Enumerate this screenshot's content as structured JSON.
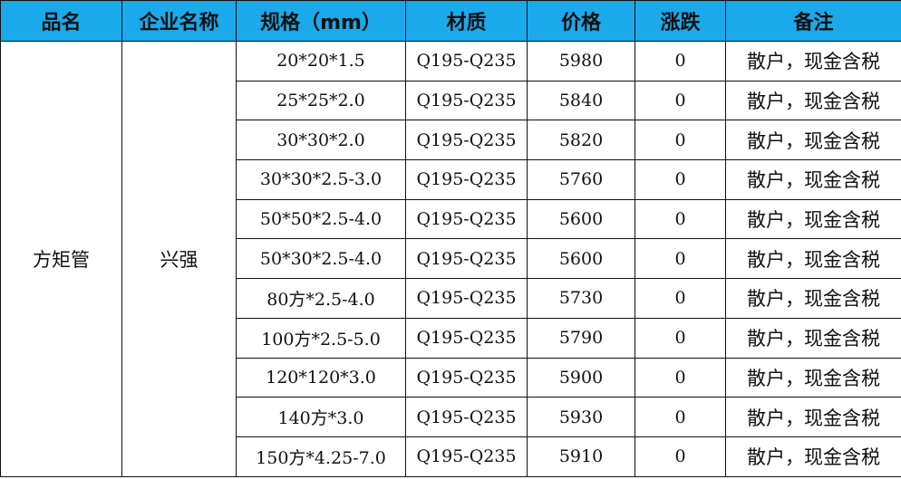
{
  "header_color": "#1aa9ea",
  "columns": [
    "品名",
    "企业名称",
    "规格（mm）",
    "材质",
    "价格",
    "涨跌",
    "备注"
  ],
  "product": "方矩管",
  "company": "兴强",
  "rows": [
    {
      "spec": "20*20*1.5",
      "material": "Q195-Q235",
      "price": "5980",
      "change": "0",
      "remark": "散户，现金含税"
    },
    {
      "spec": "25*25*2.0",
      "material": "Q195-Q235",
      "price": "5840",
      "change": "0",
      "remark": "散户，现金含税"
    },
    {
      "spec": "30*30*2.0",
      "material": "Q195-Q235",
      "price": "5820",
      "change": "0",
      "remark": "散户，现金含税"
    },
    {
      "spec": "30*30*2.5-3.0",
      "material": "Q195-Q235",
      "price": "5760",
      "change": "0",
      "remark": "散户，现金含税"
    },
    {
      "spec": "50*50*2.5-4.0",
      "material": "Q195-Q235",
      "price": "5600",
      "change": "0",
      "remark": "散户，现金含税"
    },
    {
      "spec": "50*30*2.5-4.0",
      "material": "Q195-Q235",
      "price": "5600",
      "change": "0",
      "remark": "散户，现金含税"
    },
    {
      "spec": "80方*2.5-4.0",
      "material": "Q195-Q235",
      "price": "5730",
      "change": "0",
      "remark": "散户，现金含税"
    },
    {
      "spec": "100方*2.5-5.0",
      "material": "Q195-Q235",
      "price": "5790",
      "change": "0",
      "remark": "散户，现金含税"
    },
    {
      "spec": "120*120*3.0",
      "material": "Q195-Q235",
      "price": "5900",
      "change": "0",
      "remark": "散户，现金含税"
    },
    {
      "spec": "140方*3.0",
      "material": "Q195-Q235",
      "price": "5930",
      "change": "0",
      "remark": "散户，现金含税"
    },
    {
      "spec": "150方*4.25-7.0",
      "material": "Q195-Q235",
      "price": "5910",
      "change": "0",
      "remark": "散户，现金含税"
    }
  ]
}
